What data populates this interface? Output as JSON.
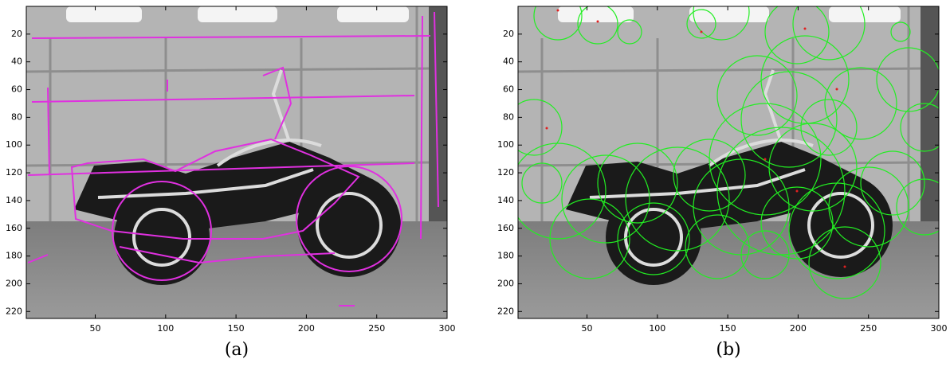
{
  "panels": [
    {
      "label": "(a)",
      "xlim": [
        1,
        300
      ],
      "ylim": [
        0,
        225
      ],
      "xticks": [
        50,
        100,
        150,
        200,
        250,
        300
      ],
      "yticks": [
        20,
        40,
        60,
        80,
        100,
        120,
        140,
        160,
        180,
        200,
        220
      ]
    },
    {
      "label": "(b)",
      "xlim": [
        1,
        300
      ],
      "ylim": [
        0,
        225
      ],
      "xticks": [
        50,
        100,
        150,
        200,
        250,
        300
      ],
      "yticks": [
        20,
        40,
        60,
        80,
        100,
        120,
        140,
        160,
        180,
        200,
        220
      ]
    }
  ]
}
